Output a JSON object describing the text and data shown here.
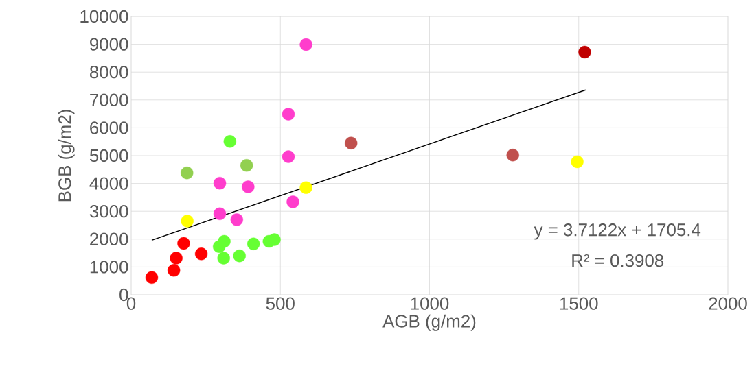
{
  "chart_data": {
    "type": "scatter",
    "xlabel": "AGB (g/m2)",
    "ylabel": "BGB (g/m2)",
    "xlim": [
      0,
      2000
    ],
    "xticks": [
      0,
      500,
      1000,
      1500,
      2000
    ],
    "ylim": [
      0,
      10000
    ],
    "yticks": [
      0,
      1000,
      2000,
      3000,
      4000,
      5000,
      6000,
      7000,
      8000,
      9000,
      10000
    ],
    "grid": true,
    "marker": "circle",
    "series": [
      {
        "color": "#ff0000",
        "x": [
          69,
          143,
          151,
          176,
          235
        ],
        "values": [
          620,
          880,
          1320,
          1850,
          1470
        ]
      },
      {
        "color": "#ffff00",
        "x": [
          188,
          586,
          1495
        ],
        "values": [
          2650,
          3850,
          4780
        ]
      },
      {
        "color": "#92d050",
        "x": [
          187,
          387
        ],
        "values": [
          4380,
          4650
        ]
      },
      {
        "color": "#66ff33",
        "x": [
          331,
          295,
          312,
          310,
          363,
          410,
          462,
          480
        ],
        "values": [
          5510,
          1730,
          1920,
          1320,
          1400,
          1830,
          1920,
          1980
        ]
      },
      {
        "color": "#ff3dcc",
        "x": [
          586,
          527,
          527,
          297,
          392,
          297,
          354,
          542
        ],
        "values": [
          8990,
          6490,
          4960,
          4010,
          3880,
          2910,
          2700,
          3340
        ]
      },
      {
        "color": "#c0504d",
        "x": [
          737,
          1279
        ],
        "values": [
          5450,
          5020
        ]
      },
      {
        "color": "#c00000",
        "x": [
          1520
        ],
        "values": [
          8720
        ]
      },
      {
        "type": "line",
        "color": "#000000",
        "marker": "none",
        "x": [
          69,
          1523
        ],
        "values": [
          1961,
          7359
        ]
      }
    ],
    "annotations": [
      "y = 3.7122x + 1705.4",
      "R² = 0.3908"
    ]
  }
}
